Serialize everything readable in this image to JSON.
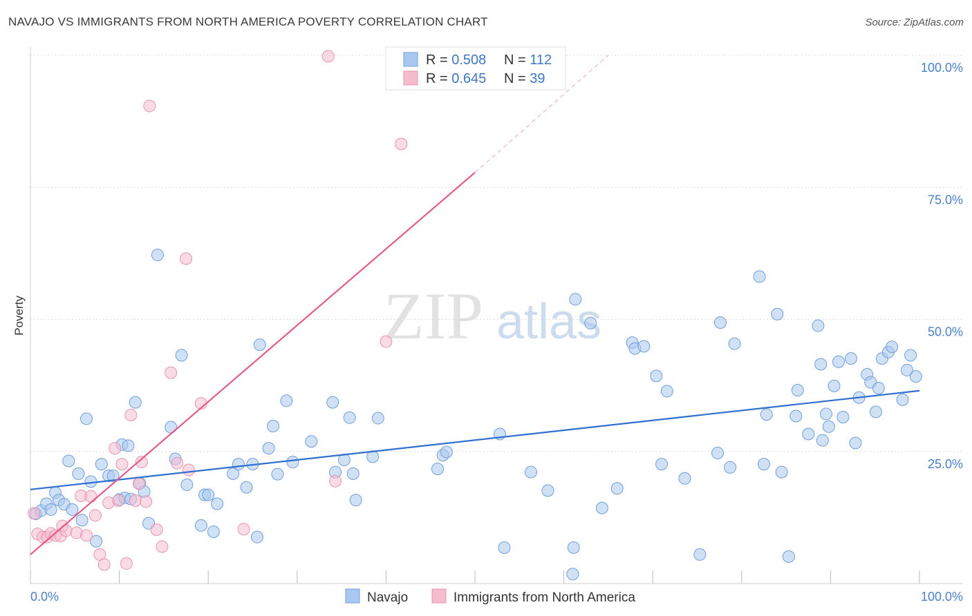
{
  "title": "NAVAJO VS IMMIGRANTS FROM NORTH AMERICA POVERTY CORRELATION CHART",
  "source": "Source: ZipAtlas.com",
  "watermark": {
    "zip": "ZIP",
    "atlas": "atlas"
  },
  "chart_data": {
    "type": "scatter",
    "xlabel": "",
    "ylabel": "Poverty",
    "xlim": [
      0,
      100
    ],
    "ylim": [
      0,
      100
    ],
    "x_tick_labels": {
      "left": "0.0%",
      "right": "100.0%"
    },
    "y_ticks": [
      {
        "value": 25,
        "label": "25.0%"
      },
      {
        "value": 50,
        "label": "50.0%"
      },
      {
        "value": 75,
        "label": "75.0%"
      },
      {
        "value": 100,
        "label": "100.0%"
      }
    ],
    "legend": [
      {
        "name": "Navajo",
        "r_label": "R = ",
        "r": "0.508",
        "n_label": "N = ",
        "n": "112",
        "color": "#a9c8ef",
        "stroke": "#6f9fdc"
      },
      {
        "name": "Immigrants from North America",
        "r_label": "R = ",
        "r": "0.645",
        "n_label": "N = ",
        "n": "39",
        "color": "#f5bccd",
        "stroke": "#e894b0"
      }
    ],
    "series": [
      {
        "name": "Navajo",
        "color": "#a9c8ef",
        "stroke": "#6f9fdc",
        "trend": {
          "x0": 0,
          "y0": 17.8,
          "x1": 100,
          "y1": 36.5,
          "color": "#2f6fd0"
        },
        "points": [
          [
            0.6,
            13.2
          ],
          [
            1.2,
            13.8
          ],
          [
            1.8,
            15.1
          ],
          [
            2.3,
            14.0
          ],
          [
            2.8,
            17.2
          ],
          [
            3.2,
            15.8
          ],
          [
            3.8,
            15.0
          ],
          [
            4.3,
            23.2
          ],
          [
            4.7,
            14.0
          ],
          [
            5.4,
            20.8
          ],
          [
            5.8,
            12.0
          ],
          [
            6.3,
            31.2
          ],
          [
            6.8,
            19.3
          ],
          [
            7.4,
            8.0
          ],
          [
            8.0,
            22.6
          ],
          [
            8.8,
            20.4
          ],
          [
            9.3,
            20.4
          ],
          [
            10.0,
            15.9
          ],
          [
            10.3,
            26.3
          ],
          [
            10.6,
            16.2
          ],
          [
            11.0,
            26.1
          ],
          [
            11.3,
            16.0
          ],
          [
            11.8,
            34.3
          ],
          [
            12.3,
            19.0
          ],
          [
            12.8,
            17.4
          ],
          [
            13.3,
            11.4
          ],
          [
            14.3,
            62.2
          ],
          [
            15.8,
            29.6
          ],
          [
            16.3,
            23.6
          ],
          [
            17.0,
            43.2
          ],
          [
            17.6,
            18.7
          ],
          [
            19.2,
            11.0
          ],
          [
            19.6,
            16.8
          ],
          [
            20.0,
            16.8
          ],
          [
            20.6,
            9.8
          ],
          [
            21.0,
            15.1
          ],
          [
            22.8,
            20.8
          ],
          [
            23.4,
            22.6
          ],
          [
            24.3,
            18.2
          ],
          [
            25.0,
            22.6
          ],
          [
            25.5,
            8.8
          ],
          [
            25.8,
            45.2
          ],
          [
            26.8,
            25.6
          ],
          [
            27.3,
            29.8
          ],
          [
            27.8,
            20.7
          ],
          [
            28.8,
            34.6
          ],
          [
            29.5,
            23.0
          ],
          [
            31.6,
            26.9
          ],
          [
            34.0,
            34.3
          ],
          [
            34.3,
            21.1
          ],
          [
            35.3,
            23.4
          ],
          [
            35.9,
            31.4
          ],
          [
            36.3,
            20.8
          ],
          [
            36.6,
            15.8
          ],
          [
            38.5,
            24.0
          ],
          [
            39.1,
            31.3
          ],
          [
            45.8,
            21.7
          ],
          [
            46.4,
            24.3
          ],
          [
            46.8,
            24.9
          ],
          [
            52.8,
            28.3
          ],
          [
            53.3,
            6.8
          ],
          [
            56.3,
            21.1
          ],
          [
            58.2,
            17.6
          ],
          [
            61.1,
            6.8
          ],
          [
            61.3,
            53.8
          ],
          [
            63.0,
            49.3
          ],
          [
            64.3,
            14.3
          ],
          [
            66.0,
            18.0
          ],
          [
            67.7,
            45.6
          ],
          [
            68.0,
            44.5
          ],
          [
            69.0,
            44.9
          ],
          [
            70.4,
            39.3
          ],
          [
            71.0,
            22.6
          ],
          [
            71.6,
            36.4
          ],
          [
            73.6,
            19.9
          ],
          [
            75.3,
            5.5
          ],
          [
            77.3,
            24.7
          ],
          [
            77.6,
            49.4
          ],
          [
            78.7,
            22.0
          ],
          [
            79.2,
            45.4
          ],
          [
            82.0,
            58.1
          ],
          [
            82.5,
            22.6
          ],
          [
            82.8,
            32.0
          ],
          [
            84.0,
            51.0
          ],
          [
            84.5,
            21.1
          ],
          [
            85.3,
            5.1
          ],
          [
            86.1,
            31.7
          ],
          [
            86.3,
            36.6
          ],
          [
            87.5,
            28.3
          ],
          [
            88.6,
            48.8
          ],
          [
            88.9,
            41.5
          ],
          [
            89.1,
            27.1
          ],
          [
            89.5,
            32.1
          ],
          [
            89.8,
            29.7
          ],
          [
            90.4,
            37.4
          ],
          [
            90.9,
            42.0
          ],
          [
            91.4,
            31.5
          ],
          [
            92.3,
            42.6
          ],
          [
            92.8,
            26.6
          ],
          [
            93.2,
            35.2
          ],
          [
            94.1,
            39.6
          ],
          [
            94.5,
            38.1
          ],
          [
            95.1,
            32.5
          ],
          [
            95.4,
            37.0
          ],
          [
            95.8,
            42.6
          ],
          [
            96.5,
            43.8
          ],
          [
            96.9,
            44.8
          ],
          [
            98.1,
            34.8
          ],
          [
            98.6,
            40.4
          ],
          [
            99.0,
            43.2
          ],
          [
            99.6,
            39.2
          ],
          [
            61.0,
            1.8
          ]
        ]
      },
      {
        "name": "Immigrants from North America",
        "color": "#f5bccd",
        "stroke": "#e894b0",
        "trend": {
          "x0": 0,
          "y0": 5.5,
          "x1": 50,
          "y1": 77.8,
          "dash_x1": 65,
          "dash_y1": 100,
          "color": "#e35a8a"
        },
        "points": [
          [
            0.4,
            13.3
          ],
          [
            0.8,
            9.4
          ],
          [
            1.4,
            8.8
          ],
          [
            1.9,
            8.8
          ],
          [
            2.3,
            9.5
          ],
          [
            2.8,
            9.1
          ],
          [
            3.4,
            9.0
          ],
          [
            3.6,
            10.9
          ],
          [
            4.0,
            10.0
          ],
          [
            5.2,
            9.6
          ],
          [
            5.7,
            16.6
          ],
          [
            6.3,
            9.1
          ],
          [
            6.8,
            16.5
          ],
          [
            7.3,
            12.9
          ],
          [
            7.8,
            5.5
          ],
          [
            8.3,
            3.6
          ],
          [
            8.8,
            15.3
          ],
          [
            9.5,
            25.6
          ],
          [
            9.9,
            15.7
          ],
          [
            10.3,
            22.6
          ],
          [
            10.8,
            3.8
          ],
          [
            11.3,
            31.9
          ],
          [
            11.8,
            15.7
          ],
          [
            12.2,
            18.9
          ],
          [
            12.5,
            23.0
          ],
          [
            13.0,
            15.5
          ],
          [
            13.4,
            90.4
          ],
          [
            14.2,
            10.2
          ],
          [
            14.8,
            7.0
          ],
          [
            15.8,
            39.9
          ],
          [
            16.5,
            22.8
          ],
          [
            17.5,
            61.5
          ],
          [
            17.8,
            21.5
          ],
          [
            19.2,
            34.1
          ],
          [
            24.0,
            10.3
          ],
          [
            33.5,
            99.8
          ],
          [
            34.3,
            19.4
          ],
          [
            40.0,
            45.8
          ],
          [
            41.7,
            83.2
          ]
        ]
      }
    ]
  }
}
